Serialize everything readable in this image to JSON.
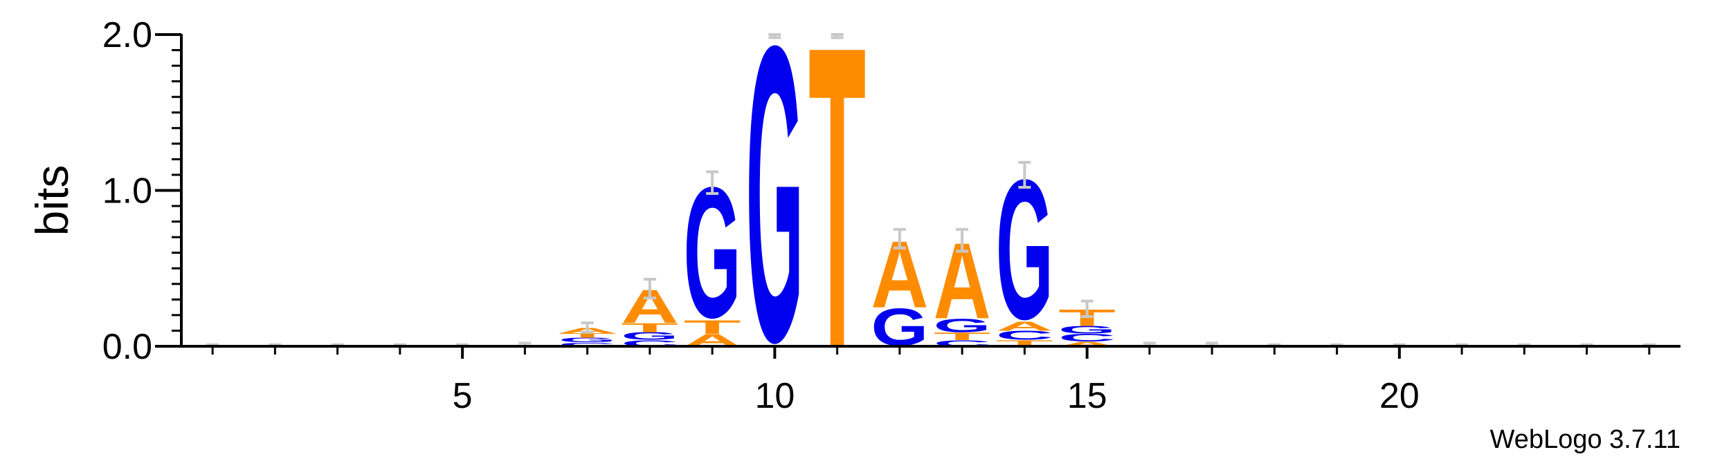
{
  "chart_data": {
    "type": "sequence-logo",
    "ylabel": "bits",
    "ylim": [
      0,
      2
    ],
    "y_ticks": [
      "0.0",
      "1.0",
      "2.0"
    ],
    "x_ticks": [
      "5",
      "10",
      "15",
      "20"
    ],
    "positions": 24,
    "colors": {
      "A": "#ff8c00",
      "T": "#ff8c00",
      "G": "#0000ee",
      "C": "#0000ee"
    },
    "columns": [
      {
        "pos": 1,
        "letters": [],
        "err": 0.01
      },
      {
        "pos": 2,
        "letters": [],
        "err": 0.01
      },
      {
        "pos": 3,
        "letters": [],
        "err": 0.01
      },
      {
        "pos": 4,
        "letters": [],
        "err": 0.01
      },
      {
        "pos": 5,
        "letters": [],
        "err": 0.01
      },
      {
        "pos": 6,
        "letters": [],
        "err": 0.02
      },
      {
        "pos": 7,
        "letters": [
          {
            "b": "C",
            "h": 0.025
          },
          {
            "b": "G",
            "h": 0.03
          },
          {
            "b": "T",
            "h": 0.03
          },
          {
            "b": "A",
            "h": 0.035
          }
        ],
        "err": 0.03
      },
      {
        "pos": 8,
        "letters": [
          {
            "b": "C",
            "h": 0.04
          },
          {
            "b": "G",
            "h": 0.05
          },
          {
            "b": "T",
            "h": 0.06
          },
          {
            "b": "A",
            "h": 0.22
          }
        ],
        "err": 0.06
      },
      {
        "pos": 9,
        "letters": [
          {
            "b": "A",
            "h": 0.08
          },
          {
            "b": "T",
            "h": 0.09
          },
          {
            "b": "G",
            "h": 0.88
          }
        ],
        "err": 0.07
      },
      {
        "pos": 10,
        "letters": [
          {
            "b": "G",
            "h": 1.99
          }
        ],
        "err": 0.01
      },
      {
        "pos": 11,
        "letters": [
          {
            "b": "T",
            "h": 1.99
          }
        ],
        "err": 0.01
      },
      {
        "pos": 12,
        "letters": [
          {
            "b": "G",
            "h": 0.25
          },
          {
            "b": "A",
            "h": 0.44
          }
        ],
        "err": 0.06
      },
      {
        "pos": 13,
        "letters": [
          {
            "b": "C",
            "h": 0.04
          },
          {
            "b": "T",
            "h": 0.05
          },
          {
            "b": "G",
            "h": 0.09
          },
          {
            "b": "A",
            "h": 0.5
          }
        ],
        "err": 0.07
      },
      {
        "pos": 14,
        "letters": [
          {
            "b": "T",
            "h": 0.04
          },
          {
            "b": "C",
            "h": 0.06
          },
          {
            "b": "A",
            "h": 0.06
          },
          {
            "b": "G",
            "h": 0.94
          }
        ],
        "err": 0.08
      },
      {
        "pos": 15,
        "letters": [
          {
            "b": "A",
            "h": 0.03
          },
          {
            "b": "C",
            "h": 0.05
          },
          {
            "b": "G",
            "h": 0.05
          },
          {
            "b": "T",
            "h": 0.11
          }
        ],
        "err": 0.05
      },
      {
        "pos": 16,
        "letters": [],
        "err": 0.02
      },
      {
        "pos": 17,
        "letters": [],
        "err": 0.02
      },
      {
        "pos": 18,
        "letters": [],
        "err": 0.01
      },
      {
        "pos": 19,
        "letters": [],
        "err": 0.01
      },
      {
        "pos": 20,
        "letters": [],
        "err": 0.01
      },
      {
        "pos": 21,
        "letters": [],
        "err": 0.01
      },
      {
        "pos": 22,
        "letters": [],
        "err": 0.01
      },
      {
        "pos": 23,
        "letters": [],
        "err": 0.01
      },
      {
        "pos": 24,
        "letters": [],
        "err": 0.01
      }
    ]
  },
  "footer": "WebLogo 3.7.11"
}
